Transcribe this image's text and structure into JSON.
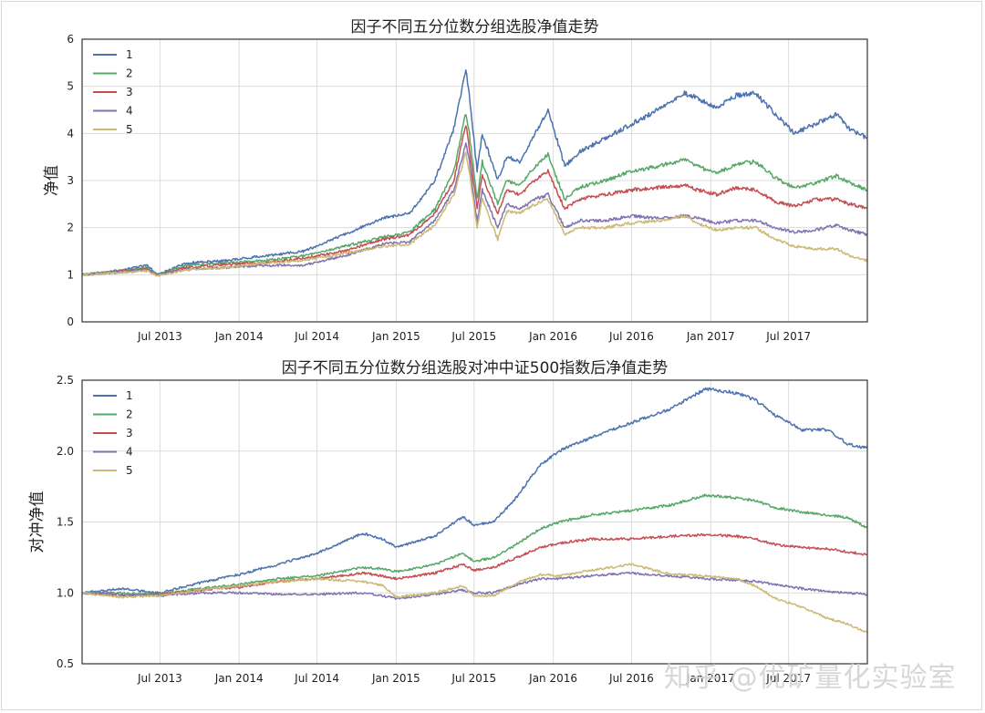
{
  "watermark": "知乎 @优矿量化实验室",
  "chart_data": [
    {
      "type": "line",
      "title": "因子不同五分位数分组选股净值走势",
      "xlabel": "",
      "ylabel": "净值",
      "xlim": [
        "2013-01-01",
        "2017-12-31"
      ],
      "ylim": [
        0,
        6
      ],
      "yticks": [
        0,
        1,
        2,
        3,
        4,
        5,
        6
      ],
      "ytick_labels": [
        "0",
        "1",
        "2",
        "3",
        "4",
        "5",
        "6"
      ],
      "xtick_labels": [
        "Jul 2013",
        "Jan 2014",
        "Jul 2014",
        "Jan 2015",
        "Jul 2015",
        "Jan 2016",
        "Jul 2016",
        "Jan 2017",
        "Jul 2017"
      ],
      "xtick_dates": [
        "2013-07-01",
        "2014-01-01",
        "2014-07-01",
        "2015-01-01",
        "2015-07-01",
        "2016-01-01",
        "2016-07-01",
        "2017-01-01",
        "2017-07-01"
      ],
      "grid": true,
      "legend": "upper-left",
      "series": [
        {
          "name": "1",
          "color": "#4c72b0",
          "x": [
            "2013-01-01",
            "2013-04-01",
            "2013-06-01",
            "2013-06-25",
            "2013-09-01",
            "2013-12-01",
            "2014-03-01",
            "2014-06-01",
            "2014-09-01",
            "2014-12-01",
            "2015-02-01",
            "2015-04-01",
            "2015-05-15",
            "2015-06-12",
            "2015-06-20",
            "2015-07-08",
            "2015-07-20",
            "2015-08-25",
            "2015-09-15",
            "2015-10-15",
            "2015-11-20",
            "2015-12-20",
            "2016-01-28",
            "2016-03-01",
            "2016-05-01",
            "2016-07-01",
            "2016-09-01",
            "2016-11-01",
            "2016-12-01",
            "2017-01-15",
            "2017-03-01",
            "2017-04-15",
            "2017-06-01",
            "2017-07-15",
            "2017-09-01",
            "2017-10-20",
            "2017-11-20",
            "2017-12-31"
          ],
          "values": [
            1.0,
            1.1,
            1.2,
            1.0,
            1.25,
            1.3,
            1.4,
            1.5,
            1.85,
            2.2,
            2.3,
            3.0,
            4.1,
            5.35,
            4.8,
            3.2,
            4.0,
            3.0,
            3.5,
            3.4,
            4.0,
            4.5,
            3.3,
            3.6,
            3.9,
            4.2,
            4.5,
            4.85,
            4.75,
            4.55,
            4.8,
            4.85,
            4.4,
            4.0,
            4.2,
            4.4,
            4.1,
            3.9
          ]
        },
        {
          "name": "2",
          "color": "#55a868",
          "x": [
            "2013-01-01",
            "2013-04-01",
            "2013-06-01",
            "2013-06-25",
            "2013-09-01",
            "2013-12-01",
            "2014-03-01",
            "2014-06-01",
            "2014-09-01",
            "2014-12-01",
            "2015-02-01",
            "2015-04-01",
            "2015-05-15",
            "2015-06-12",
            "2015-06-20",
            "2015-07-08",
            "2015-07-20",
            "2015-08-25",
            "2015-09-15",
            "2015-10-15",
            "2015-11-20",
            "2015-12-20",
            "2016-01-28",
            "2016-03-01",
            "2016-05-01",
            "2016-07-01",
            "2016-09-01",
            "2016-11-01",
            "2016-12-01",
            "2017-01-15",
            "2017-03-01",
            "2017-04-15",
            "2017-06-01",
            "2017-07-15",
            "2017-09-01",
            "2017-10-20",
            "2017-11-20",
            "2017-12-31"
          ],
          "values": [
            1.0,
            1.08,
            1.15,
            1.0,
            1.2,
            1.25,
            1.3,
            1.4,
            1.6,
            1.8,
            1.9,
            2.4,
            3.2,
            4.45,
            4.0,
            2.6,
            3.4,
            2.5,
            3.0,
            2.9,
            3.3,
            3.55,
            2.6,
            2.85,
            3.0,
            3.2,
            3.3,
            3.45,
            3.3,
            3.15,
            3.35,
            3.4,
            3.05,
            2.85,
            2.95,
            3.1,
            2.95,
            2.8
          ]
        },
        {
          "name": "3",
          "color": "#c44e52",
          "x": [
            "2013-01-01",
            "2013-04-01",
            "2013-06-01",
            "2013-06-25",
            "2013-09-01",
            "2013-12-01",
            "2014-03-01",
            "2014-06-01",
            "2014-09-01",
            "2014-12-01",
            "2015-02-01",
            "2015-04-01",
            "2015-05-15",
            "2015-06-12",
            "2015-06-20",
            "2015-07-08",
            "2015-07-20",
            "2015-08-25",
            "2015-09-15",
            "2015-10-15",
            "2015-11-20",
            "2015-12-20",
            "2016-01-28",
            "2016-03-01",
            "2016-05-01",
            "2016-07-01",
            "2016-09-01",
            "2016-11-01",
            "2016-12-01",
            "2017-01-15",
            "2017-03-01",
            "2017-04-15",
            "2017-06-01",
            "2017-07-15",
            "2017-09-01",
            "2017-10-20",
            "2017-11-20",
            "2017-12-31"
          ],
          "values": [
            1.0,
            1.07,
            1.12,
            1.0,
            1.15,
            1.22,
            1.25,
            1.35,
            1.5,
            1.75,
            1.85,
            2.3,
            3.0,
            4.2,
            3.7,
            2.4,
            3.1,
            2.3,
            2.8,
            2.7,
            3.0,
            3.2,
            2.4,
            2.6,
            2.7,
            2.8,
            2.85,
            2.9,
            2.8,
            2.7,
            2.85,
            2.8,
            2.55,
            2.45,
            2.6,
            2.6,
            2.5,
            2.42
          ]
        },
        {
          "name": "4",
          "color": "#8172b2",
          "x": [
            "2013-01-01",
            "2013-04-01",
            "2013-06-01",
            "2013-06-25",
            "2013-09-01",
            "2013-12-01",
            "2014-03-01",
            "2014-06-01",
            "2014-09-01",
            "2014-12-01",
            "2015-02-01",
            "2015-04-01",
            "2015-05-15",
            "2015-06-12",
            "2015-06-20",
            "2015-07-08",
            "2015-07-20",
            "2015-08-25",
            "2015-09-15",
            "2015-10-15",
            "2015-11-20",
            "2015-12-20",
            "2016-01-28",
            "2016-03-01",
            "2016-05-01",
            "2016-07-01",
            "2016-09-01",
            "2016-11-01",
            "2016-12-01",
            "2017-01-15",
            "2017-03-01",
            "2017-04-15",
            "2017-06-01",
            "2017-07-15",
            "2017-09-01",
            "2017-10-20",
            "2017-11-20",
            "2017-12-31"
          ],
          "values": [
            1.0,
            1.05,
            1.1,
            1.0,
            1.12,
            1.15,
            1.2,
            1.2,
            1.4,
            1.65,
            1.7,
            2.15,
            2.8,
            3.8,
            3.4,
            2.1,
            2.8,
            2.0,
            2.5,
            2.4,
            2.6,
            2.7,
            2.0,
            2.15,
            2.15,
            2.25,
            2.2,
            2.25,
            2.2,
            2.1,
            2.15,
            2.15,
            2.0,
            1.9,
            1.95,
            2.05,
            1.95,
            1.85
          ]
        },
        {
          "name": "5",
          "color": "#ccb974",
          "x": [
            "2013-01-01",
            "2013-04-01",
            "2013-06-01",
            "2013-06-25",
            "2013-09-01",
            "2013-12-01",
            "2014-03-01",
            "2014-06-01",
            "2014-09-01",
            "2014-12-01",
            "2015-02-01",
            "2015-04-01",
            "2015-05-15",
            "2015-06-12",
            "2015-06-20",
            "2015-07-08",
            "2015-07-20",
            "2015-08-25",
            "2015-09-15",
            "2015-10-15",
            "2015-11-20",
            "2015-12-20",
            "2016-01-28",
            "2016-03-01",
            "2016-05-01",
            "2016-07-01",
            "2016-09-01",
            "2016-11-01",
            "2016-12-01",
            "2017-01-15",
            "2017-03-01",
            "2017-04-15",
            "2017-06-01",
            "2017-07-15",
            "2017-09-01",
            "2017-10-20",
            "2017-11-20",
            "2017-12-31"
          ],
          "values": [
            1.0,
            1.05,
            1.08,
            0.98,
            1.1,
            1.15,
            1.25,
            1.3,
            1.45,
            1.6,
            1.65,
            2.05,
            2.7,
            3.6,
            3.2,
            2.0,
            2.6,
            1.75,
            2.35,
            2.3,
            2.5,
            2.6,
            1.85,
            2.0,
            2.0,
            2.1,
            2.15,
            2.25,
            2.1,
            1.95,
            2.0,
            2.0,
            1.75,
            1.6,
            1.55,
            1.55,
            1.4,
            1.3
          ]
        }
      ]
    },
    {
      "type": "line",
      "title": "因子不同五分位数分组选股对冲中证500指数后净值走势",
      "xlabel": "",
      "ylabel": "对冲净值",
      "xlim": [
        "2013-01-01",
        "2017-12-31"
      ],
      "ylim": [
        0.5,
        2.5
      ],
      "yticks": [
        0.5,
        1.0,
        1.5,
        2.0,
        2.5
      ],
      "ytick_labels": [
        "0.5",
        "1.0",
        "1.5",
        "2.0",
        "2.5"
      ],
      "xtick_labels": [
        "Jul 2013",
        "Jan 2014",
        "Jul 2014",
        "Jan 2015",
        "Jul 2015",
        "Jan 2016",
        "Jul 2016",
        "Jan 2017",
        "Jul 2017"
      ],
      "xtick_dates": [
        "2013-07-01",
        "2014-01-01",
        "2014-07-01",
        "2015-01-01",
        "2015-07-01",
        "2016-01-01",
        "2016-07-01",
        "2017-01-01",
        "2017-07-01"
      ],
      "grid": true,
      "legend": "upper-left",
      "series": [
        {
          "name": "1",
          "color": "#4c72b0",
          "x": [
            "2013-01-01",
            "2013-04-01",
            "2013-07-01",
            "2013-10-01",
            "2014-01-01",
            "2014-04-01",
            "2014-07-01",
            "2014-10-15",
            "2014-12-01",
            "2015-01-01",
            "2015-04-01",
            "2015-06-05",
            "2015-07-01",
            "2015-08-15",
            "2015-10-01",
            "2015-12-01",
            "2016-01-15",
            "2016-04-01",
            "2016-07-01",
            "2016-10-01",
            "2016-12-20",
            "2017-03-01",
            "2017-04-15",
            "2017-06-01",
            "2017-08-01",
            "2017-10-01",
            "2017-11-15",
            "2017-12-31"
          ],
          "values": [
            1.0,
            1.03,
            1.0,
            1.07,
            1.13,
            1.2,
            1.28,
            1.42,
            1.38,
            1.32,
            1.4,
            1.54,
            1.48,
            1.5,
            1.65,
            1.9,
            2.0,
            2.1,
            2.2,
            2.3,
            2.44,
            2.41,
            2.36,
            2.25,
            2.15,
            2.15,
            2.05,
            2.02
          ]
        },
        {
          "name": "2",
          "color": "#55a868",
          "x": [
            "2013-01-01",
            "2013-04-01",
            "2013-07-01",
            "2013-10-01",
            "2014-01-01",
            "2014-04-01",
            "2014-07-01",
            "2014-10-15",
            "2014-12-01",
            "2015-01-01",
            "2015-04-01",
            "2015-06-05",
            "2015-07-01",
            "2015-08-15",
            "2015-10-01",
            "2015-12-01",
            "2016-01-15",
            "2016-04-01",
            "2016-07-01",
            "2016-10-01",
            "2016-12-20",
            "2017-03-01",
            "2017-04-15",
            "2017-06-01",
            "2017-08-01",
            "2017-10-01",
            "2017-11-15",
            "2017-12-31"
          ],
          "values": [
            1.0,
            1.0,
            0.99,
            1.03,
            1.06,
            1.1,
            1.12,
            1.18,
            1.17,
            1.15,
            1.2,
            1.28,
            1.22,
            1.25,
            1.33,
            1.45,
            1.5,
            1.55,
            1.58,
            1.62,
            1.69,
            1.67,
            1.65,
            1.6,
            1.57,
            1.55,
            1.53,
            1.46
          ]
        },
        {
          "name": "3",
          "color": "#c44e52",
          "x": [
            "2013-01-01",
            "2013-04-01",
            "2013-07-01",
            "2013-10-01",
            "2014-01-01",
            "2014-04-01",
            "2014-07-01",
            "2014-10-15",
            "2014-12-01",
            "2015-01-01",
            "2015-04-01",
            "2015-06-05",
            "2015-07-01",
            "2015-08-15",
            "2015-10-01",
            "2015-12-01",
            "2016-01-15",
            "2016-04-01",
            "2016-07-01",
            "2016-10-01",
            "2016-12-20",
            "2017-03-01",
            "2017-04-15",
            "2017-06-01",
            "2017-08-01",
            "2017-10-01",
            "2017-11-15",
            "2017-12-31"
          ],
          "values": [
            1.0,
            0.98,
            0.99,
            1.02,
            1.04,
            1.08,
            1.1,
            1.14,
            1.12,
            1.1,
            1.14,
            1.2,
            1.16,
            1.18,
            1.24,
            1.32,
            1.35,
            1.38,
            1.38,
            1.4,
            1.41,
            1.4,
            1.38,
            1.34,
            1.32,
            1.31,
            1.29,
            1.27
          ]
        },
        {
          "name": "4",
          "color": "#8172b2",
          "x": [
            "2013-01-01",
            "2013-04-01",
            "2013-07-01",
            "2013-10-01",
            "2014-01-01",
            "2014-04-01",
            "2014-07-01",
            "2014-10-15",
            "2014-12-01",
            "2015-01-01",
            "2015-04-01",
            "2015-06-05",
            "2015-07-01",
            "2015-08-15",
            "2015-10-01",
            "2015-12-01",
            "2016-01-15",
            "2016-04-01",
            "2016-07-01",
            "2016-10-01",
            "2016-12-20",
            "2017-03-01",
            "2017-04-15",
            "2017-06-01",
            "2017-08-01",
            "2017-10-01",
            "2017-11-15",
            "2017-12-31"
          ],
          "values": [
            1.0,
            0.99,
            0.98,
            1.0,
            1.0,
            0.99,
            0.99,
            1.0,
            0.98,
            0.96,
            0.99,
            1.02,
            1.0,
            1.0,
            1.05,
            1.1,
            1.1,
            1.12,
            1.14,
            1.12,
            1.1,
            1.09,
            1.08,
            1.06,
            1.03,
            1.01,
            1.0,
            0.99
          ]
        },
        {
          "name": "5",
          "color": "#ccb974",
          "x": [
            "2013-01-01",
            "2013-04-01",
            "2013-07-01",
            "2013-10-01",
            "2014-01-01",
            "2014-04-01",
            "2014-07-01",
            "2014-10-15",
            "2014-12-01",
            "2015-01-01",
            "2015-04-01",
            "2015-06-05",
            "2015-07-01",
            "2015-08-15",
            "2015-10-01",
            "2015-12-01",
            "2016-01-15",
            "2016-04-01",
            "2016-07-01",
            "2016-10-01",
            "2016-12-20",
            "2017-03-01",
            "2017-04-15",
            "2017-06-01",
            "2017-08-01",
            "2017-10-01",
            "2017-11-15",
            "2017-12-31"
          ],
          "values": [
            1.0,
            0.97,
            0.98,
            1.02,
            1.05,
            1.08,
            1.1,
            1.08,
            1.05,
            0.97,
            1.0,
            1.05,
            0.98,
            0.98,
            1.06,
            1.13,
            1.12,
            1.16,
            1.2,
            1.13,
            1.12,
            1.1,
            1.05,
            0.96,
            0.9,
            0.82,
            0.78,
            0.72
          ]
        }
      ]
    }
  ]
}
